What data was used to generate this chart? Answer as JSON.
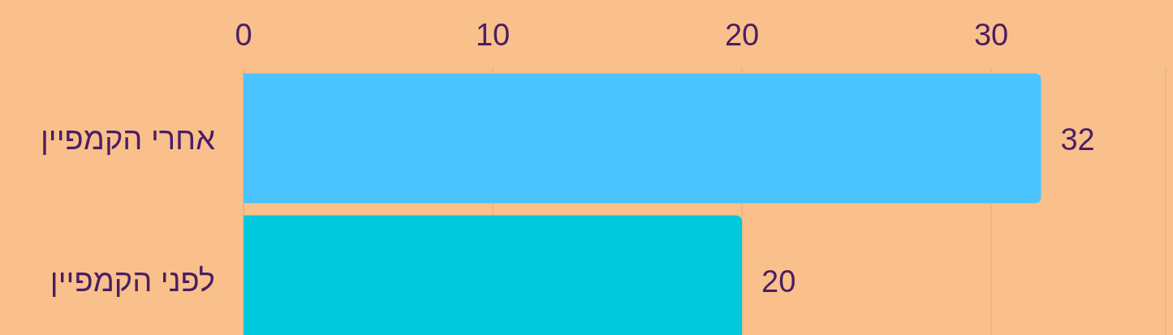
{
  "chart_data": {
    "type": "bar",
    "orientation": "horizontal",
    "categories": [
      "אחרי הקמפיין",
      "לפני הקמפיין"
    ],
    "values": [
      32,
      20
    ],
    "colors": [
      "#4bc3fd",
      "#00c9dc"
    ],
    "xlim": [
      0,
      37
    ],
    "xticks": [
      0,
      10,
      20,
      30
    ],
    "grid": "x",
    "data_labels": true
  }
}
